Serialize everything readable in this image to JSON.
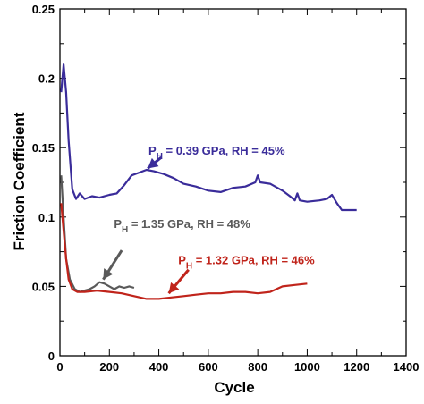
{
  "chart_data": {
    "type": "line",
    "xlabel": "Cycle",
    "ylabel": "Friction Coefficient",
    "xlim": [
      0,
      1400
    ],
    "ylim": [
      0,
      0.25
    ],
    "x_ticks": [
      "0",
      "200",
      "400",
      "600",
      "800",
      "1000",
      "1200",
      "1400"
    ],
    "y_ticks": [
      "0",
      "0.05",
      "0.1",
      "0.15",
      "0.2",
      "0.25"
    ],
    "grid": false,
    "legend": "none",
    "series": [
      {
        "name": "P_H = 0.39 GPa, RH = 45%",
        "color": "#3a2c9a",
        "points": [
          [
            5,
            0.19
          ],
          [
            15,
            0.21
          ],
          [
            25,
            0.19
          ],
          [
            35,
            0.155
          ],
          [
            50,
            0.12
          ],
          [
            65,
            0.113
          ],
          [
            80,
            0.117
          ],
          [
            100,
            0.113
          ],
          [
            130,
            0.115
          ],
          [
            160,
            0.114
          ],
          [
            200,
            0.116
          ],
          [
            230,
            0.117
          ],
          [
            260,
            0.123
          ],
          [
            290,
            0.13
          ],
          [
            320,
            0.132
          ],
          [
            350,
            0.134
          ],
          [
            380,
            0.133
          ],
          [
            420,
            0.131
          ],
          [
            460,
            0.128
          ],
          [
            500,
            0.124
          ],
          [
            550,
            0.122
          ],
          [
            600,
            0.119
          ],
          [
            650,
            0.118
          ],
          [
            700,
            0.121
          ],
          [
            750,
            0.122
          ],
          [
            790,
            0.125
          ],
          [
            800,
            0.13
          ],
          [
            810,
            0.125
          ],
          [
            850,
            0.124
          ],
          [
            900,
            0.119
          ],
          [
            930,
            0.115
          ],
          [
            950,
            0.112
          ],
          [
            960,
            0.117
          ],
          [
            970,
            0.112
          ],
          [
            1000,
            0.111
          ],
          [
            1050,
            0.112
          ],
          [
            1080,
            0.113
          ],
          [
            1100,
            0.116
          ],
          [
            1120,
            0.11
          ],
          [
            1140,
            0.105
          ],
          [
            1170,
            0.105
          ],
          [
            1200,
            0.105
          ]
        ]
      },
      {
        "name": "P_H = 1.35 GPa, RH = 48%",
        "color": "#5a5a5a",
        "points": [
          [
            5,
            0.13
          ],
          [
            15,
            0.1
          ],
          [
            25,
            0.07
          ],
          [
            40,
            0.055
          ],
          [
            60,
            0.048
          ],
          [
            80,
            0.046
          ],
          [
            100,
            0.047
          ],
          [
            120,
            0.048
          ],
          [
            140,
            0.05
          ],
          [
            160,
            0.053
          ],
          [
            180,
            0.052
          ],
          [
            200,
            0.05
          ],
          [
            220,
            0.048
          ],
          [
            240,
            0.05
          ],
          [
            260,
            0.049
          ],
          [
            280,
            0.05
          ],
          [
            300,
            0.049
          ]
        ]
      },
      {
        "name": "P_H = 1.32 GPa, RH = 46%",
        "color": "#c0241b",
        "points": [
          [
            5,
            0.11
          ],
          [
            15,
            0.09
          ],
          [
            25,
            0.07
          ],
          [
            35,
            0.055
          ],
          [
            50,
            0.048
          ],
          [
            70,
            0.046
          ],
          [
            100,
            0.046
          ],
          [
            150,
            0.047
          ],
          [
            200,
            0.046
          ],
          [
            250,
            0.045
          ],
          [
            300,
            0.043
          ],
          [
            350,
            0.041
          ],
          [
            400,
            0.041
          ],
          [
            450,
            0.042
          ],
          [
            500,
            0.043
          ],
          [
            550,
            0.044
          ],
          [
            600,
            0.045
          ],
          [
            650,
            0.045
          ],
          [
            700,
            0.046
          ],
          [
            750,
            0.046
          ],
          [
            800,
            0.045
          ],
          [
            850,
            0.046
          ],
          [
            900,
            0.05
          ],
          [
            950,
            0.051
          ],
          [
            1000,
            0.052
          ]
        ]
      }
    ],
    "annotations": [
      {
        "main": "P",
        "sub": "H",
        "rest": " = 0.39 GPa, RH = 45%",
        "color": "#3a2c9a",
        "x": 380,
        "y": 0.145,
        "arrow_from": [
          410,
          0.143
        ],
        "arrow_to": [
          355,
          0.135
        ]
      },
      {
        "main": "P",
        "sub": "H",
        "rest": " = 1.35 GPa, RH = 48%",
        "color": "#5a5a5a",
        "x": 240,
        "y": 0.092,
        "arrow_from": [
          250,
          0.076
        ],
        "arrow_to": [
          175,
          0.055
        ]
      },
      {
        "main": "P",
        "sub": "H",
        "rest": " = 1.32 GPa, RH = 46%",
        "color": "#c0241b",
        "x": 500,
        "y": 0.066,
        "arrow_from": [
          520,
          0.062
        ],
        "arrow_to": [
          440,
          0.045
        ]
      }
    ]
  }
}
